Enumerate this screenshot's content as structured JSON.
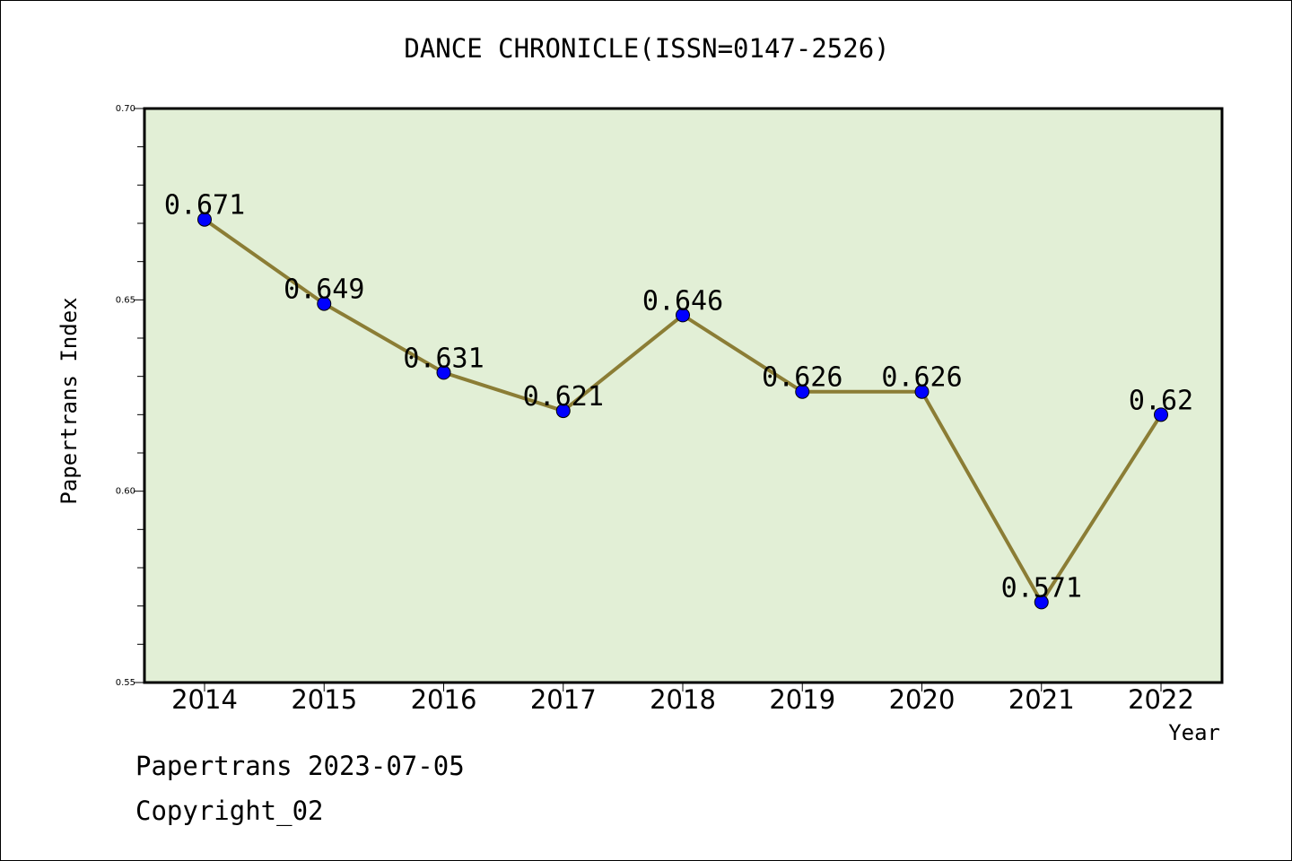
{
  "title": "DANCE CHRONICLE(ISSN=0147-2526)",
  "footer": {
    "line1": "Papertrans 2023-07-05",
    "line2": "Copyright_02"
  },
  "colors": {
    "plot_background": "#e2efd6",
    "line": "#8b7d35",
    "marker": "#0000ff",
    "axis": "#000000"
  },
  "chart_data": {
    "type": "line",
    "title": "DANCE CHRONICLE(ISSN=0147-2526)",
    "xlabel": "Year",
    "ylabel": "Papertrans Index",
    "categories": [
      "2014",
      "2015",
      "2016",
      "2017",
      "2018",
      "2019",
      "2020",
      "2021",
      "2022"
    ],
    "values": [
      0.671,
      0.649,
      0.631,
      0.621,
      0.646,
      0.626,
      0.626,
      0.571,
      0.62
    ],
    "data_labels": [
      "0.671",
      "0.649",
      "0.631",
      "0.621",
      "0.646",
      "0.626",
      "0.626",
      "0.571",
      "0.62"
    ],
    "ylim": [
      0.55,
      0.7
    ],
    "yticks": [
      "0.55",
      "0.60",
      "0.65",
      "0.70"
    ],
    "grid": false,
    "legend": "none"
  }
}
